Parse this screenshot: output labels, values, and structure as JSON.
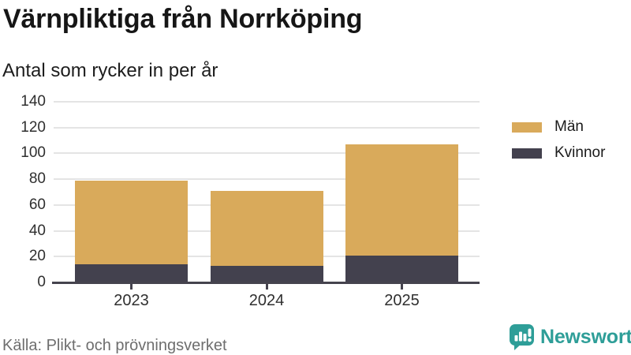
{
  "header": {
    "title": "Värnpliktiga från Norrköping",
    "subtitle": "Antal som rycker in per år"
  },
  "footer": {
    "source": "Källa: Plikt- och prövningsverket",
    "brand": "Newsworthy"
  },
  "colors": {
    "men": "#d9aa5b",
    "women": "#43414e",
    "axis": "#45434e",
    "gridline": "#e4e4e4",
    "teal_brand": "#2e9e98",
    "tick_text": "#2f2f2f",
    "source_text": "#6e6e6e",
    "background": "#ffffff"
  },
  "chart_data": {
    "type": "bar",
    "stacked": true,
    "title": "Värnpliktiga från Norrköping",
    "subtitle": "Antal som rycker in per år",
    "categories": [
      "2023",
      "2024",
      "2025"
    ],
    "series": [
      {
        "name": "Män",
        "color": "#d9aa5b",
        "values": [
          65,
          58,
          86
        ]
      },
      {
        "name": "Kvinnor",
        "color": "#43414e",
        "values": [
          14,
          13,
          21
        ]
      }
    ],
    "stack_bottom_to_top": [
      "Kvinnor",
      "Män"
    ],
    "totals": [
      79,
      71,
      107
    ],
    "xlabel": "",
    "ylabel": "",
    "ylim": [
      0,
      140
    ],
    "yticks": [
      0,
      20,
      40,
      60,
      80,
      100,
      120,
      140
    ],
    "grid": true,
    "legend_position": "right",
    "source": "Källa: Plikt- och prövningsverket"
  }
}
